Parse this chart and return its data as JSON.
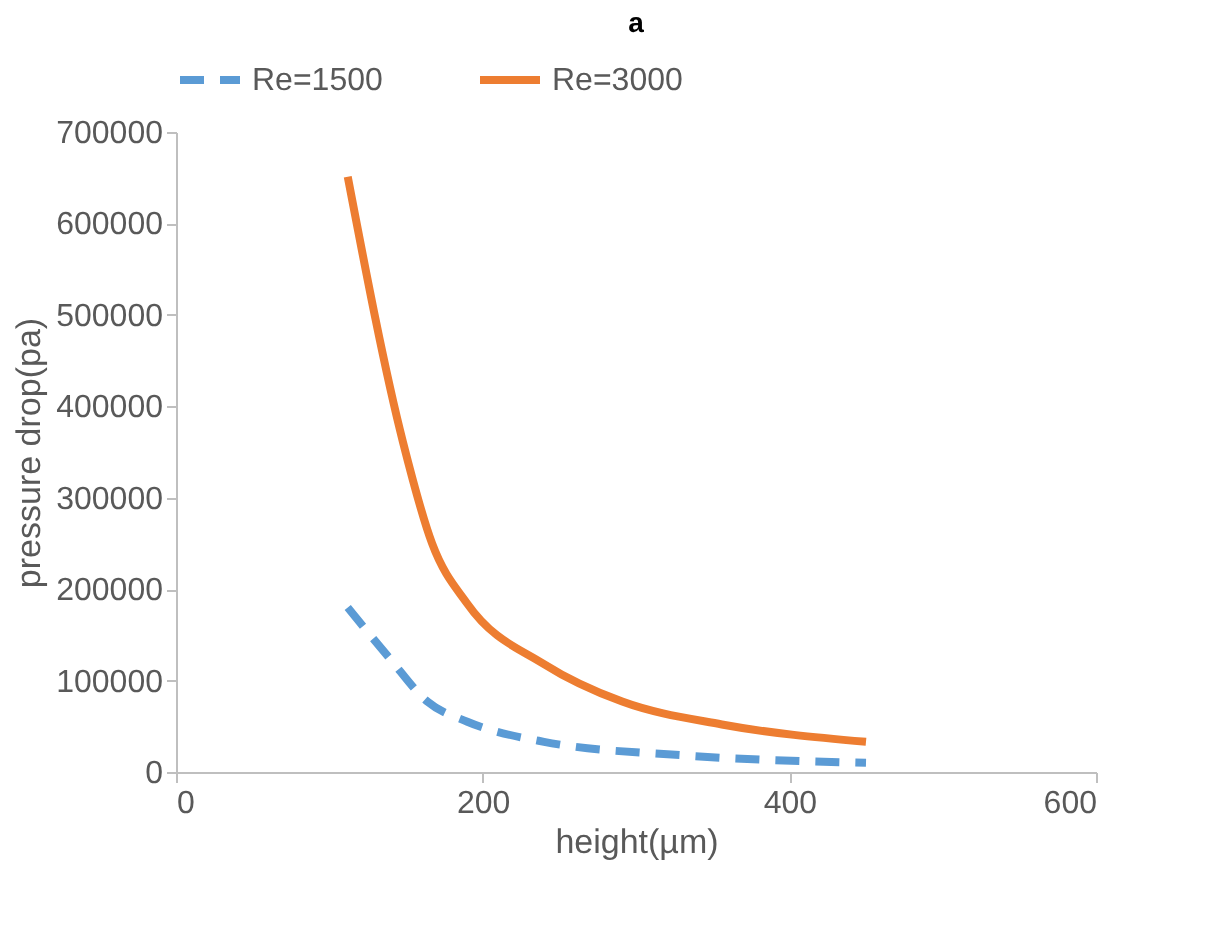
{
  "chart_data": {
    "type": "line",
    "title": "a",
    "xlabel": "height(µm)",
    "ylabel": "pressure drop(pa)",
    "xlim": [
      0,
      600
    ],
    "xticks": [
      0,
      200,
      400,
      600
    ],
    "ylim": [
      0,
      700000
    ],
    "yticks": [
      0,
      100000,
      200000,
      300000,
      400000,
      500000,
      600000,
      700000
    ],
    "grid": false,
    "legend": "top",
    "marker": "none",
    "series": [
      {
        "name": "Re=1500",
        "color": "#5b9bd5",
        "line_style": "dashed",
        "x": [
          112,
          139,
          164,
          190,
          240,
          333,
          450
        ],
        "values": [
          180000,
          125000,
          77000,
          55000,
          33000,
          18000,
          10000
        ]
      },
      {
        "name": "Re=3000",
        "color": "#ed7d31",
        "line_style": "solid",
        "x": [
          112,
          148,
          167,
          190,
          240,
          291,
          356,
          450
        ],
        "values": [
          651000,
          361000,
          250000,
          184000,
          118000,
          77000,
          52000,
          33000
        ]
      }
    ]
  }
}
